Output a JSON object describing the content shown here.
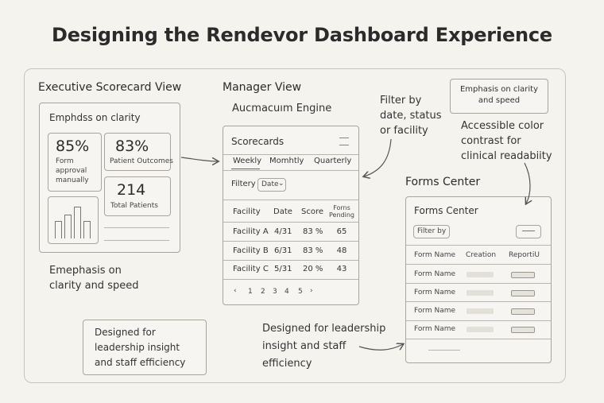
{
  "title": "Designing the Rendevor Dashboard Experience",
  "executive": {
    "heading": "Executive Scorecard View",
    "card_title": "Emphdss on clarity",
    "kpi1": {
      "value": "85%",
      "label1": "Form",
      "label2": "approval",
      "label3": "manually"
    },
    "kpi2": {
      "value": "83%",
      "label": "Patient Outcomes"
    },
    "kpi3": {
      "value": "214",
      "label": "Total Patients"
    },
    "chart_bars": [
      0.45,
      0.62,
      0.85,
      0.45
    ],
    "note1": "Emephasis on",
    "note2": "clarity and speed"
  },
  "manager": {
    "heading": "Manager View",
    "subheading": "Aucmacuım Engine",
    "card_title": "Scorecards",
    "tabs": [
      "Weekly",
      "Momhtly",
      "Quarterly"
    ],
    "filter_label": "Filtery",
    "filter_value": "Date",
    "columns": [
      "Facility",
      "Date",
      "Score",
      "Forns",
      "Pending"
    ],
    "rows": [
      {
        "facility": "Facility A",
        "date": "4/31",
        "score": "83 %",
        "pending": "65"
      },
      {
        "facility": "Facility B",
        "date": "6/31",
        "score": "83 %",
        "pending": "48"
      },
      {
        "facility": "Facility C",
        "date": "5/31",
        "score": "20 %",
        "pending": "43"
      }
    ],
    "pagination": [
      "‹",
      "1",
      "2",
      "3",
      "4",
      "5",
      "›"
    ]
  },
  "annotations": {
    "filter_note": [
      "Filter by",
      "date, status",
      "or facility"
    ],
    "emphasis_box": [
      "Emphasis on clarity",
      "and speed"
    ],
    "accessible": [
      "Accessible color",
      "contrast for",
      "clinical readabiity"
    ],
    "designed_left": [
      "Designed for",
      "leadership insight",
      "and staff efficiency"
    ],
    "designed_right": [
      "Designed for leadership",
      "insight and staff",
      "efficiency"
    ]
  },
  "forms": {
    "heading": "Forms Center",
    "card_title": "Forms Center",
    "filter_button": "Filter by",
    "columns": [
      "Form Name",
      "Creation",
      "ReportiU"
    ],
    "rows": [
      "Form Name",
      "Form Name",
      "Form Name",
      "Form Name"
    ],
    "footer": "\t \t"
  }
}
